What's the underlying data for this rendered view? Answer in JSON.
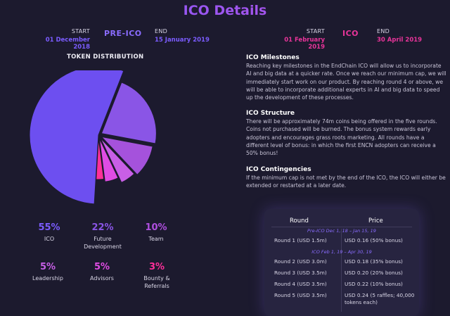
{
  "page": {
    "title": "ICO Details"
  },
  "preico": {
    "start_label": "START",
    "start_date": "01 December 2018",
    "phase": "PRE-ICO",
    "end_label": "END",
    "end_date": "15 January 2019"
  },
  "ico": {
    "start_label": "START",
    "start_date": "01 February 2019",
    "phase": "ICO",
    "end_label": "END",
    "end_date": "30 April 2019"
  },
  "distribution": {
    "title": "TOKEN DISTRIBUTION",
    "items": [
      {
        "pct": "55%",
        "name": "ICO"
      },
      {
        "pct": "22%",
        "name": "Future Development"
      },
      {
        "pct": "10%",
        "name": "Team"
      },
      {
        "pct": "5%",
        "name": "Leadership"
      },
      {
        "pct": "5%",
        "name": "Advisors"
      },
      {
        "pct": "3%",
        "name": "Bounty & Referrals"
      }
    ]
  },
  "chart_data": {
    "type": "pie",
    "title": "TOKEN DISTRIBUTION",
    "categories": [
      "ICO",
      "Future Development",
      "Team",
      "Leadership",
      "Advisors",
      "Bounty & Referrals"
    ],
    "values": [
      55,
      22,
      10,
      5,
      5,
      3
    ],
    "colors": [
      "#6d4ff0",
      "#8a55e6",
      "#a552dc",
      "#c85fe6",
      "#e04ce4",
      "#ff2f9a"
    ]
  },
  "colors": {
    "purple": "#7b5cff",
    "violet": "#a455ee",
    "pink": "#e8349a",
    "accent_text": "#8a6cff"
  },
  "sections": [
    {
      "heading": "ICO Milestones",
      "body": "Reaching key milestones in the EndChain ICO will allow us to incorporate AI and big data at a quicker rate. Once we reach our minimum cap, we will immediately start work on our product. By reaching round 4 or above, we will be able to incorporate additional experts in AI and big data to speed up the development of these processes."
    },
    {
      "heading": "ICO Structure",
      "body": "There will be approximately 74m coins being offered in the five rounds. Coins not purchased will be burned. The bonus system rewards early adopters and encourages grass roots marketing. All rounds have a different level of bonus: in which the first ENCN adopters can receive a 50% bonus!"
    },
    {
      "heading": "ICO Contingencies",
      "body": "If the minimum cap is not met by the end of the ICO, the ICO will either be extended or restarted at a later date."
    }
  ],
  "table": {
    "header_round": "Round",
    "header_price": "Price",
    "preico_label": "Pre-ICO Dec 1, 18 – Jan 15, 19",
    "ico_label": "ICO Feb 1, 19 – Apr 30, 19",
    "rows": [
      {
        "round": "Round 1 (USD 1.5m)",
        "price": "USD 0.16 (50% bonus)"
      },
      {
        "round": "Round 2 (USD 3.0m)",
        "price": "USD 0.18 (35% bonus)"
      },
      {
        "round": "Round 3 (USD 3.5m)",
        "price": "USD 0.20 (20% bonus)"
      },
      {
        "round": "Round 4 (USD 3.5m)",
        "price": "USD 0.22 (10% bonus)"
      },
      {
        "round": "Round 5 (USD 3.5m)",
        "price": "USD 0.24 (5 raffles; 40,000 tokens each)"
      }
    ]
  }
}
